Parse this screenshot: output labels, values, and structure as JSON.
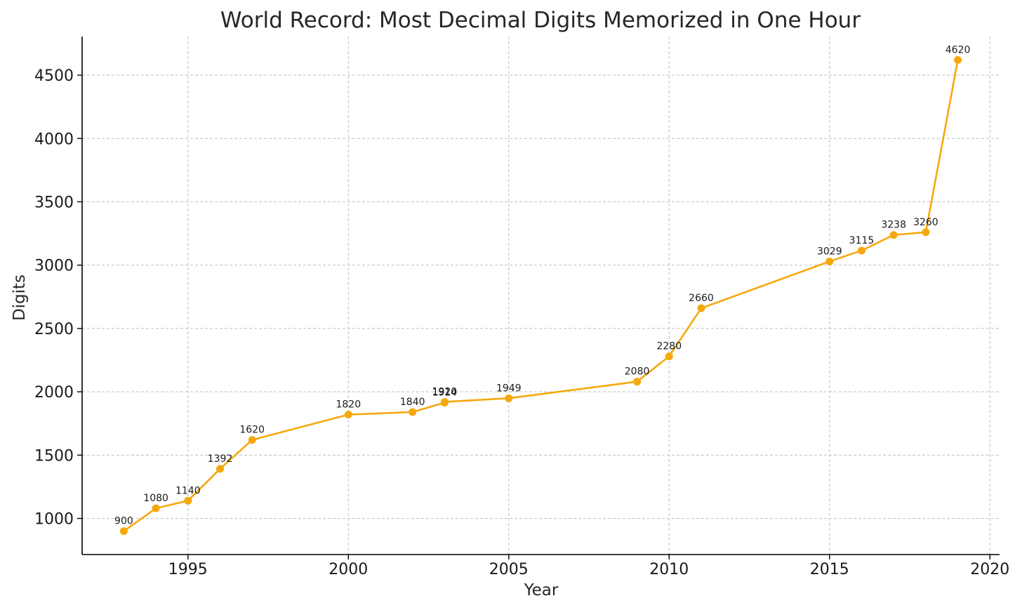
{
  "chart_data": {
    "type": "line",
    "title": "World Record: Most Decimal Digits Memorized in One Hour",
    "xlabel": "Year",
    "ylabel": "Digits",
    "xlim": [
      1991.7,
      2020.3
    ],
    "ylim": [
      715,
      4805
    ],
    "xticks": [
      1995,
      2000,
      2005,
      2010,
      2015,
      2020
    ],
    "yticks": [
      1000,
      1500,
      2000,
      2500,
      3000,
      3500,
      4000,
      4500
    ],
    "grid": true,
    "color": "#f5a80c",
    "series": [
      {
        "name": "",
        "points": [
          {
            "x": 1993,
            "y": 900
          },
          {
            "x": 1994,
            "y": 1080
          },
          {
            "x": 1995,
            "y": 1140
          },
          {
            "x": 1996,
            "y": 1392
          },
          {
            "x": 1997,
            "y": 1620
          },
          {
            "x": 2000,
            "y": 1820
          },
          {
            "x": 2002,
            "y": 1840
          },
          {
            "x": 2003,
            "y": 1914
          },
          {
            "x": 2003,
            "y": 1920
          },
          {
            "x": 2005,
            "y": 1949
          },
          {
            "x": 2009,
            "y": 2080
          },
          {
            "x": 2010,
            "y": 2280
          },
          {
            "x": 2011,
            "y": 2660
          },
          {
            "x": 2015,
            "y": 3029
          },
          {
            "x": 2016,
            "y": 3115
          },
          {
            "x": 2017,
            "y": 3238
          },
          {
            "x": 2018,
            "y": 3260
          },
          {
            "x": 2019,
            "y": 4620
          }
        ]
      }
    ]
  }
}
